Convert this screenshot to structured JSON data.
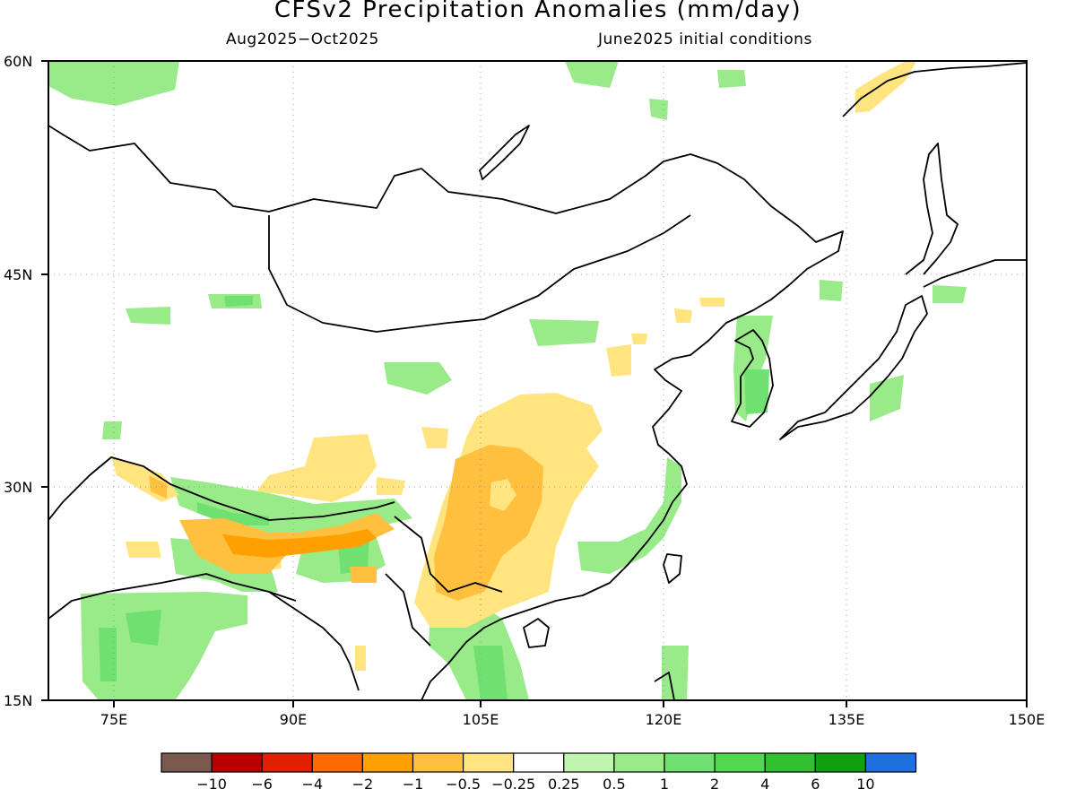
{
  "title": "CFSv2 Precipitation Anomalies (mm/day)",
  "subtitle_left": "Aug2025−Oct2025",
  "subtitle_right": "June2025 initial conditions",
  "lat_labels": [
    "60N",
    "45N",
    "30N",
    "15N"
  ],
  "lon_labels": [
    "75E",
    "90E",
    "105E",
    "120E",
    "135E",
    "150E"
  ],
  "colorbar": {
    "colors": [
      "#7a5a4e",
      "#b80000",
      "#e02000",
      "#ff6a00",
      "#ffa000",
      "#ffc040",
      "#ffe480",
      "#ffffff",
      "#c0f5b0",
      "#98eb88",
      "#70e070",
      "#50d850",
      "#30c030",
      "#10a010",
      "#2070e0"
    ],
    "labels": [
      "−10",
      "−6",
      "−4",
      "−2",
      "−1",
      "−0.5",
      "−0.25",
      "0.25",
      "0.5",
      "1",
      "2",
      "4",
      "6",
      "10"
    ]
  }
}
